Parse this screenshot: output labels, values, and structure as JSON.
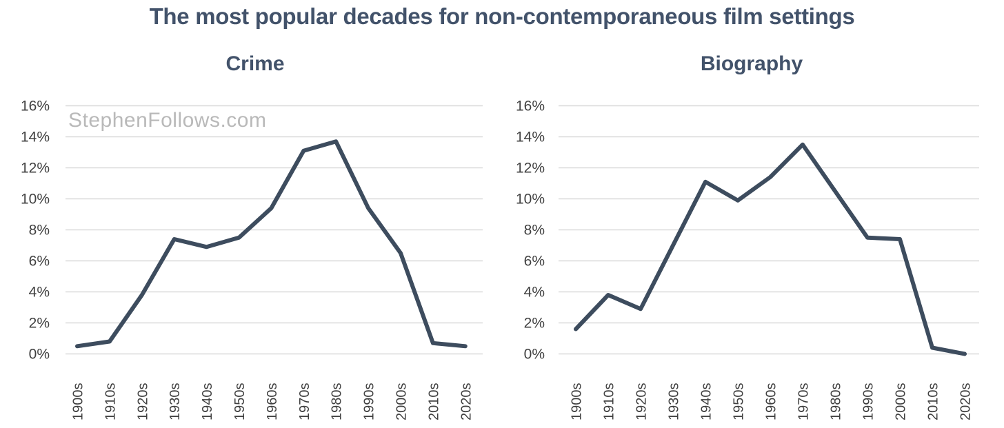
{
  "title": "The most popular decades for non-contemporaneous film settings",
  "watermark": "StephenFollows.com",
  "colors": {
    "title": "#42526a",
    "line": "#3d4c5e",
    "gridline": "#d9d9d9",
    "axis_label": "#404040",
    "watermark": "#b9b9b9",
    "background": "#ffffff"
  },
  "chart_data": [
    {
      "type": "line",
      "title": "Crime",
      "categories": [
        "1900s",
        "1910s",
        "1920s",
        "1930s",
        "1940s",
        "1950s",
        "1960s",
        "1970s",
        "1980s",
        "1990s",
        "2000s",
        "2010s",
        "2020s"
      ],
      "values": [
        0.5,
        0.8,
        3.8,
        7.4,
        6.9,
        7.5,
        9.4,
        13.1,
        13.7,
        9.4,
        6.5,
        0.7,
        0.5
      ],
      "xlabel": "",
      "ylabel": "",
      "ylim": [
        0,
        16
      ],
      "ytick_step": 2,
      "ytick_suffix": "%",
      "grid": true,
      "legend": "none"
    },
    {
      "type": "line",
      "title": "Biography",
      "categories": [
        "1900s",
        "1910s",
        "1920s",
        "1930s",
        "1940s",
        "1950s",
        "1960s",
        "1970s",
        "1980s",
        "1990s",
        "2000s",
        "2010s",
        "2020s"
      ],
      "values": [
        1.6,
        3.8,
        2.9,
        7.0,
        11.1,
        9.9,
        11.4,
        13.5,
        10.5,
        7.5,
        7.4,
        0.4,
        0.0
      ],
      "xlabel": "",
      "ylabel": "",
      "ylim": [
        0,
        16
      ],
      "ytick_step": 2,
      "ytick_suffix": "%",
      "grid": true,
      "legend": "none"
    }
  ]
}
